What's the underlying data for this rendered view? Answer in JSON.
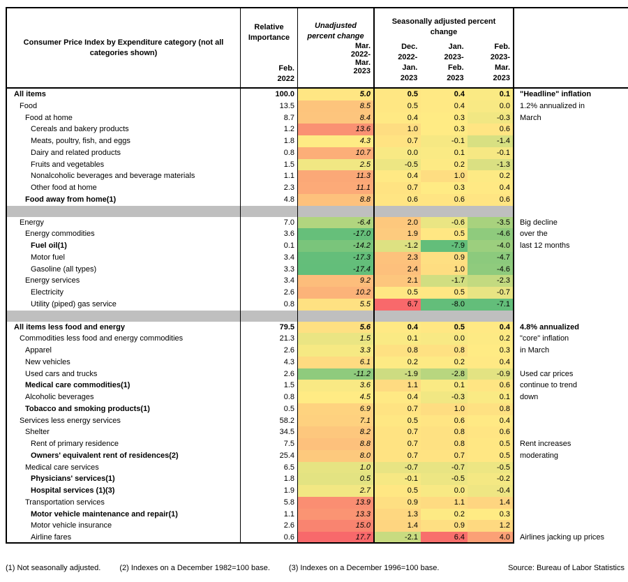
{
  "header": {
    "category": "Consumer Price Index by Expenditure category (not all categories shown)",
    "relative_importance": {
      "title_lines": [
        "Relative",
        "Importance"
      ],
      "period_lines": [
        "Feb.",
        "2022"
      ]
    },
    "unadjusted": {
      "title_lines": [
        "Unadjusted",
        "percent change"
      ],
      "period_lines": [
        "Mar.",
        "2022-",
        "Mar.",
        "2023"
      ]
    },
    "seasonally_adjusted": {
      "title_lines": [
        "Seasonally adjusted percent",
        "change"
      ],
      "columns": [
        [
          "Dec.",
          "2022-",
          "Jan.",
          "2023"
        ],
        [
          "Jan.",
          "2023-",
          "Feb.",
          "2023"
        ],
        [
          "Feb.",
          "2023-",
          "Mar.",
          "2023"
        ]
      ]
    }
  },
  "chart_data": {
    "type": "heatmap",
    "columns": [
      "Relative Importance Feb. 2022",
      "Unadjusted percent change Mar. 2022-Mar. 2023",
      "Seasonally adjusted Dec. 2022-Jan. 2023",
      "Seasonally adjusted Jan. 2023-Feb. 2023",
      "Seasonally adjusted Feb. 2023-Mar. 2023"
    ],
    "color_scale": {
      "green": "#63be7a",
      "yellow": "#ffeb84",
      "red": "#f8696b",
      "separator_gray": "#bfbfbf",
      "unadjusted_scale": {
        "min": -17.4,
        "mid": 4.5,
        "max": 17.7
      },
      "seasonally_adjusted_scale": {
        "min": -6.5,
        "mid": 0.3,
        "max": 6.7
      }
    },
    "rows": [
      {
        "label": "All items",
        "indent": 0,
        "bold": true,
        "strong": true,
        "ri": "100.0",
        "unadj": "5.0",
        "sa": [
          "0.5",
          "0.4",
          "0.1"
        ],
        "note": "\"Headline\" inflation"
      },
      {
        "label": "Food",
        "indent": 1,
        "ri": "13.5",
        "unadj": "8.5",
        "sa": [
          "0.5",
          "0.4",
          "0.0"
        ],
        "note": "1.2% annualized in"
      },
      {
        "label": "Food at home",
        "indent": 2,
        "ri": "8.7",
        "unadj": "8.4",
        "sa": [
          "0.4",
          "0.3",
          "-0.3"
        ],
        "note": "March"
      },
      {
        "label": "Cereals and bakery products",
        "indent": 3,
        "ri": "1.2",
        "unadj": "13.6",
        "sa": [
          "1.0",
          "0.3",
          "0.6"
        ]
      },
      {
        "label": "Meats, poultry, fish, and eggs",
        "indent": 3,
        "ri": "1.8",
        "unadj": "4.3",
        "sa": [
          "0.7",
          "-0.1",
          "-1.4"
        ]
      },
      {
        "label": "Dairy and related products",
        "indent": 3,
        "ri": "0.8",
        "unadj": "10.7",
        "sa": [
          "0.0",
          "0.1",
          "-0.1"
        ]
      },
      {
        "label": "Fruits and vegetables",
        "indent": 3,
        "ri": "1.5",
        "unadj": "2.5",
        "sa": [
          "-0.5",
          "0.2",
          "-1.3"
        ]
      },
      {
        "label": "Nonalcoholic beverages and beverage materials",
        "indent": 3,
        "ri": "1.1",
        "unadj": "11.3",
        "sa": [
          "0.4",
          "1.0",
          "0.2"
        ]
      },
      {
        "label": "Other food at home",
        "indent": 3,
        "ri": "2.3",
        "unadj": "11.1",
        "sa": [
          "0.7",
          "0.3",
          "0.4"
        ]
      },
      {
        "label": "Food away from home(1)",
        "indent": 2,
        "bold": true,
        "ri": "4.8",
        "unadj": "8.8",
        "sa": [
          "0.6",
          "0.6",
          "0.6"
        ]
      },
      {
        "type": "separator"
      },
      {
        "label": "Energy",
        "indent": 1,
        "ri": "7.0",
        "unadj": "-6.4",
        "sa": [
          "2.0",
          "-0.6",
          "-3.5"
        ],
        "note": "Big decline"
      },
      {
        "label": "Energy commodities",
        "indent": 2,
        "ri": "3.6",
        "unadj": "-17.0",
        "sa": [
          "1.9",
          "0.5",
          "-4.6"
        ],
        "note": "over the"
      },
      {
        "label": "Fuel oil(1)",
        "indent": 3,
        "bold": true,
        "ri": "0.1",
        "unadj": "-14.2",
        "sa": [
          "-1.2",
          "-7.9",
          "-4.0"
        ],
        "note": "last 12 months"
      },
      {
        "label": "Motor fuel",
        "indent": 3,
        "ri": "3.4",
        "unadj": "-17.3",
        "sa": [
          "2.3",
          "0.9",
          "-4.7"
        ]
      },
      {
        "label": "Gasoline (all types)",
        "indent": 3,
        "ri": "3.3",
        "unadj": "-17.4",
        "sa": [
          "2.4",
          "1.0",
          "-4.6"
        ]
      },
      {
        "label": "Energy services",
        "indent": 2,
        "ri": "3.4",
        "unadj": "9.2",
        "sa": [
          "2.1",
          "-1.7",
          "-2.3"
        ]
      },
      {
        "label": "Electricity",
        "indent": 3,
        "ri": "2.6",
        "unadj": "10.2",
        "sa": [
          "0.5",
          "0.5",
          "-0.7"
        ]
      },
      {
        "label": "Utility (piped) gas service",
        "indent": 3,
        "ri": "0.8",
        "unadj": "5.5",
        "sa": [
          "6.7",
          "-8.0",
          "-7.1"
        ]
      },
      {
        "type": "separator"
      },
      {
        "label": "All items less food and energy",
        "indent": 0,
        "bold": true,
        "strong": true,
        "ri": "79.5",
        "unadj": "5.6",
        "sa": [
          "0.4",
          "0.5",
          "0.4"
        ],
        "note": "4.8% annualized"
      },
      {
        "label": "Commodities less food and energy commodities",
        "indent": 1,
        "ri": "21.3",
        "unadj": "1.5",
        "sa": [
          "0.1",
          "0.0",
          "0.2"
        ],
        "note": "\"core\" inflation"
      },
      {
        "label": "Apparel",
        "indent": 2,
        "ri": "2.6",
        "unadj": "3.3",
        "sa": [
          "0.8",
          "0.8",
          "0.3"
        ],
        "note": "in March"
      },
      {
        "label": "New vehicles",
        "indent": 2,
        "ri": "4.3",
        "unadj": "6.1",
        "sa": [
          "0.2",
          "0.2",
          "0.4"
        ]
      },
      {
        "label": "Used cars and trucks",
        "indent": 2,
        "ri": "2.6",
        "unadj": "-11.2",
        "sa": [
          "-1.9",
          "-2.8",
          "-0.9"
        ],
        "note": "Used car prices"
      },
      {
        "label": "Medical care commodities(1)",
        "indent": 2,
        "bold": true,
        "ri": "1.5",
        "unadj": "3.6",
        "sa": [
          "1.1",
          "0.1",
          "0.6"
        ],
        "note": "continue to trend"
      },
      {
        "label": "Alcoholic beverages",
        "indent": 2,
        "ri": "0.8",
        "unadj": "4.5",
        "sa": [
          "0.4",
          "-0.3",
          "0.1"
        ],
        "note": "down"
      },
      {
        "label": "Tobacco and smoking products(1)",
        "indent": 2,
        "bold": true,
        "ri": "0.5",
        "unadj": "6.9",
        "sa": [
          "0.7",
          "1.0",
          "0.8"
        ]
      },
      {
        "label": "Services less energy services",
        "indent": 1,
        "ri": "58.2",
        "unadj": "7.1",
        "sa": [
          "0.5",
          "0.6",
          "0.4"
        ]
      },
      {
        "label": "Shelter",
        "indent": 2,
        "ri": "34.5",
        "unadj": "8.2",
        "sa": [
          "0.7",
          "0.8",
          "0.6"
        ]
      },
      {
        "label": "Rent of primary residence",
        "indent": 3,
        "ri": "7.5",
        "unadj": "8.8",
        "sa": [
          "0.7",
          "0.8",
          "0.5"
        ],
        "note": "Rent increases"
      },
      {
        "label": "Owners' equivalent rent of residences(2)",
        "indent": 3,
        "bold": true,
        "ri": "25.4",
        "unadj": "8.0",
        "sa": [
          "0.7",
          "0.7",
          "0.5"
        ],
        "note": "moderating"
      },
      {
        "label": "Medical care services",
        "indent": 2,
        "ri": "6.5",
        "unadj": "1.0",
        "sa": [
          "-0.7",
          "-0.7",
          "-0.5"
        ]
      },
      {
        "label": "Physicians' services(1)",
        "indent": 3,
        "bold": true,
        "ri": "1.8",
        "unadj": "0.5",
        "sa": [
          "-0.1",
          "-0.5",
          "-0.2"
        ]
      },
      {
        "label": "Hospital services (1)(3)",
        "indent": 3,
        "bold": true,
        "ri": "1.9",
        "unadj": "2.7",
        "sa": [
          "0.5",
          "0.0",
          "-0.4"
        ]
      },
      {
        "label": "Transportation services",
        "indent": 2,
        "ri": "5.8",
        "unadj": "13.9",
        "sa": [
          "0.9",
          "1.1",
          "1.4"
        ]
      },
      {
        "label": "Motor vehicle maintenance and repair(1)",
        "indent": 3,
        "bold": true,
        "ri": "1.1",
        "unadj": "13.3",
        "sa": [
          "1.3",
          "0.2",
          "0.3"
        ]
      },
      {
        "label": "Motor vehicle insurance",
        "indent": 3,
        "ri": "2.6",
        "unadj": "15.0",
        "sa": [
          "1.4",
          "0.9",
          "1.2"
        ]
      },
      {
        "label": "Airline fares",
        "indent": 3,
        "ri": "0.6",
        "unadj": "17.7",
        "sa": [
          "-2.1",
          "6.4",
          "4.0"
        ],
        "note": "Airlines jacking up prices"
      }
    ]
  },
  "footnotes": [
    "(1) Not seasonally adjusted.",
    "(2) Indexes on a December 1982=100 base.",
    "(3) Indexes on a December 1996=100 base."
  ],
  "source": "Source: Bureau of Labor Statistics"
}
